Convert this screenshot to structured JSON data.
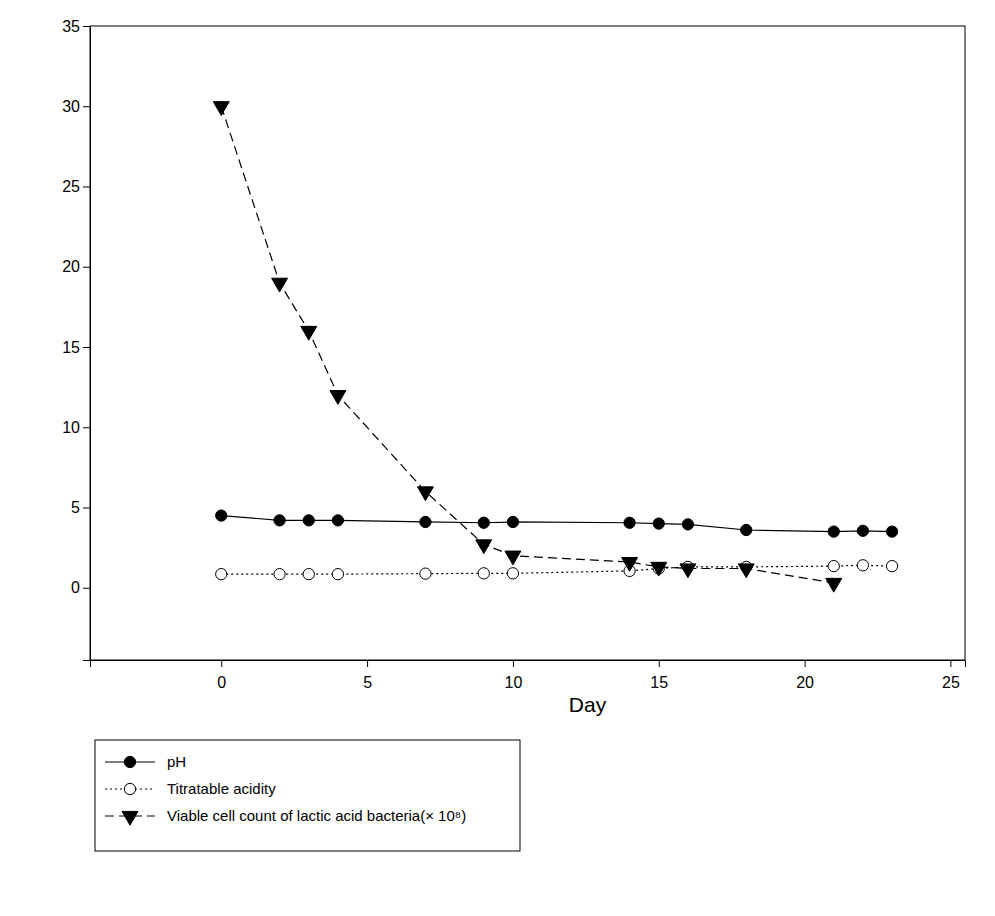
{
  "chart_data": {
    "type": "line",
    "x_label": "Day",
    "xlim": [
      -4.5,
      25.5
    ],
    "xticks": [
      0,
      5,
      10,
      15,
      20,
      25
    ],
    "ylim": [
      -4.5,
      35
    ],
    "yticks": [
      0,
      5,
      10,
      15,
      20,
      25,
      30,
      35
    ],
    "legend": "bottom",
    "series": [
      {
        "name": "pH",
        "color": "#000000",
        "marker": "circle",
        "line_style": "solid",
        "x": [
          0,
          2,
          3,
          4,
          7,
          9,
          10,
          14,
          15,
          16,
          18,
          21,
          22,
          23
        ],
        "values": [
          4.5,
          4.2,
          4.2,
          4.2,
          4.1,
          4.05,
          4.1,
          4.05,
          4.0,
          3.95,
          3.6,
          3.5,
          3.55,
          3.5
        ]
      },
      {
        "name": "Titratable acidity",
        "color": "#000000",
        "marker": "circle-open",
        "line_style": "dotted",
        "x": [
          0,
          2,
          3,
          4,
          7,
          9,
          10,
          14,
          15,
          16,
          18,
          21,
          22,
          23
        ],
        "values": [
          0.85,
          0.85,
          0.85,
          0.85,
          0.88,
          0.9,
          0.9,
          1.05,
          1.2,
          1.3,
          1.3,
          1.35,
          1.4,
          1.35
        ]
      },
      {
        "name": "Viable cell count of lactic acid bacteria(× 10⁸)",
        "color": "#000000",
        "marker": "triangle-down",
        "line_style": "dashed",
        "x": [
          0,
          2,
          3,
          4,
          7,
          9,
          10,
          14,
          15,
          16,
          18,
          21
        ],
        "values": [
          30,
          19,
          16,
          12,
          6,
          2.7,
          2,
          1.6,
          1.3,
          1.2,
          1.2,
          0.3
        ]
      }
    ]
  }
}
